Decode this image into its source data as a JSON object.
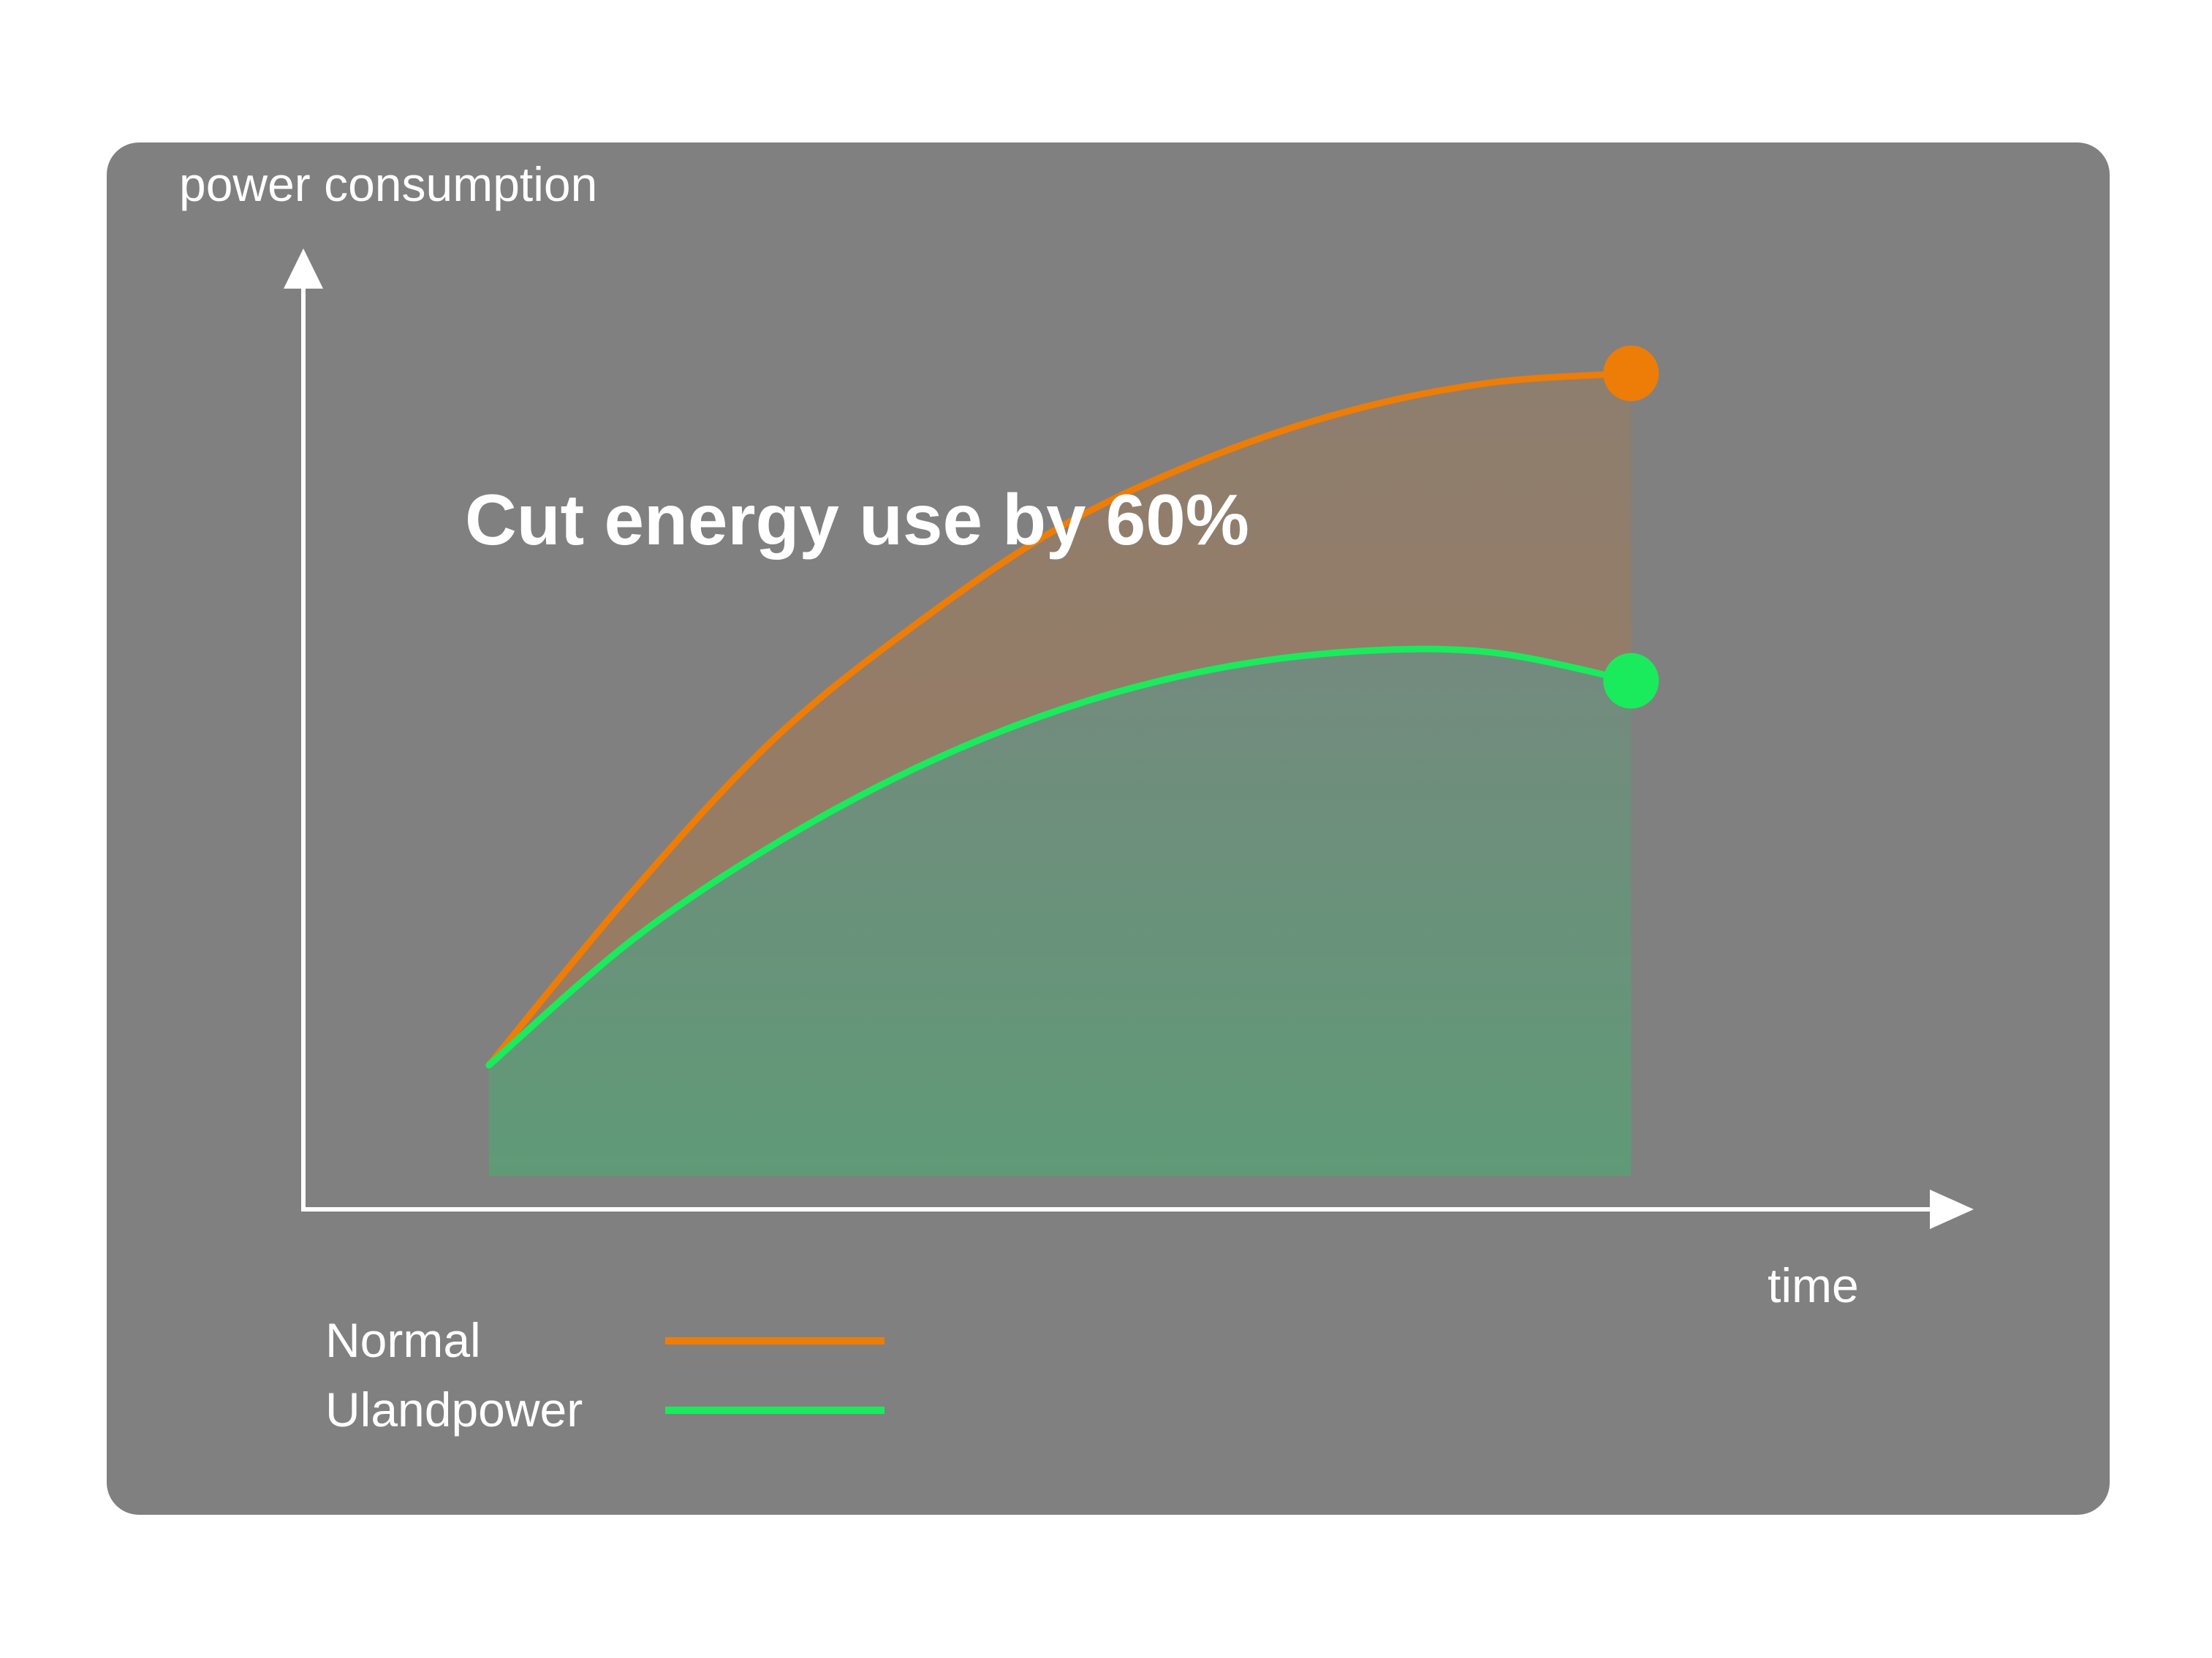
{
  "chart_data": {
    "type": "area",
    "title": "",
    "annotation": "Cut energy use by 60%",
    "xlabel": "time",
    "ylabel": "power consumption",
    "x": [
      0,
      1,
      2,
      3,
      4,
      5,
      6,
      7,
      8
    ],
    "xlim": [
      -1.3,
      10.4
    ],
    "ylim": [
      0,
      10
    ],
    "grid": false,
    "legend_position": "bottom-left",
    "series": [
      {
        "name": "Normal",
        "color": "#ED7D07",
        "fill_color": "#9C7A5E",
        "values": [
          1.5,
          3.3,
          4.9,
          6.1,
          7.1,
          7.8,
          8.3,
          8.6,
          8.7
        ]
      },
      {
        "name": "Ulandpower",
        "color": "#1AEB5C",
        "fill_color": "#5E9A78",
        "values": [
          1.5,
          2.8,
          3.8,
          4.6,
          5.2,
          5.6,
          5.8,
          5.8,
          5.5
        ]
      }
    ],
    "colors": {
      "panel": "#808080",
      "axis": "#ffffff",
      "text": "#ffffff"
    }
  }
}
